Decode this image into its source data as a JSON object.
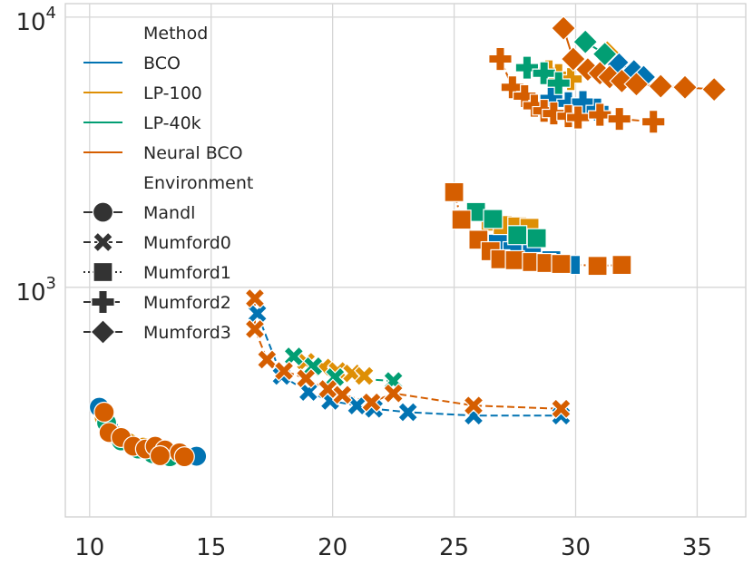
{
  "chart_data": {
    "type": "scatter",
    "title": "",
    "xlabel": "",
    "ylabel": "",
    "xlim": [
      9,
      37
    ],
    "ylim_log10": [
      2.15,
      4.05
    ],
    "y_scale": "log",
    "grid": true,
    "legend_position": "top-left",
    "x_ticks": [
      10,
      15,
      20,
      25,
      30,
      35
    ],
    "y_ticks": [
      {
        "value": 1000,
        "base": "10",
        "exp": "3"
      },
      {
        "value": 10000,
        "base": "10",
        "exp": "4"
      }
    ],
    "legend": {
      "method_title": "Method",
      "methods": [
        {
          "name": "BCO",
          "color": "#0173b2"
        },
        {
          "name": "LP-100",
          "color": "#de8f05"
        },
        {
          "name": "LP-40k",
          "color": "#029e73"
        },
        {
          "name": "Neural BCO",
          "color": "#d55e00"
        }
      ],
      "environment_title": "Environment",
      "environments": [
        {
          "name": "Mandl",
          "marker": "circle",
          "dash": "solid"
        },
        {
          "name": "Mumford0",
          "marker": "x",
          "dash": "dashed"
        },
        {
          "name": "Mumford1",
          "marker": "square",
          "dash": "dotted"
        },
        {
          "name": "Mumford2",
          "marker": "plus",
          "dash": "dashdot"
        },
        {
          "name": "Mumford3",
          "marker": "diamond",
          "dash": "solid"
        }
      ]
    },
    "series": [
      {
        "method": "BCO",
        "environment": "Mandl",
        "points": [
          [
            10.4,
            360
          ],
          [
            10.8,
            300
          ],
          [
            11.3,
            270
          ],
          [
            12.0,
            255
          ],
          [
            12.6,
            245
          ],
          [
            13.1,
            242
          ],
          [
            13.9,
            238
          ],
          [
            14.4,
            237
          ]
        ]
      },
      {
        "method": "LP-100",
        "environment": "Mandl",
        "points": [
          [
            10.6,
            330
          ],
          [
            11.1,
            282
          ],
          [
            11.6,
            266
          ],
          [
            12.2,
            256
          ],
          [
            12.7,
            250
          ],
          [
            13.2,
            246
          ]
        ]
      },
      {
        "method": "LP-40k",
        "environment": "Mandl",
        "points": [
          [
            10.7,
            315
          ],
          [
            11.3,
            270
          ],
          [
            12.0,
            252
          ],
          [
            12.6,
            242
          ],
          [
            13.3,
            236
          ]
        ]
      },
      {
        "method": "Neural BCO",
        "environment": "Mandl",
        "points": [
          [
            10.6,
            345
          ],
          [
            10.8,
            290
          ],
          [
            11.3,
            278
          ],
          [
            11.8,
            258
          ],
          [
            12.3,
            252
          ],
          [
            12.7,
            258
          ],
          [
            13.1,
            250
          ],
          [
            13.7,
            244
          ],
          [
            12.9,
            238
          ],
          [
            13.9,
            236
          ]
        ]
      },
      {
        "method": "BCO",
        "environment": "Mumford0",
        "points": [
          [
            16.9,
            800
          ],
          [
            17.9,
            470
          ],
          [
            19.0,
            410
          ],
          [
            19.9,
            380
          ],
          [
            21.0,
            365
          ],
          [
            21.7,
            355
          ],
          [
            23.1,
            345
          ],
          [
            25.8,
            335
          ],
          [
            29.4,
            335
          ]
        ]
      },
      {
        "method": "LP-100",
        "environment": "Mumford0",
        "points": [
          [
            18.9,
            530
          ],
          [
            19.6,
            505
          ],
          [
            20.2,
            490
          ],
          [
            20.8,
            480
          ],
          [
            21.3,
            470
          ]
        ]
      },
      {
        "method": "LP-40k",
        "environment": "Mumford0",
        "points": [
          [
            18.4,
            555
          ],
          [
            19.2,
            510
          ],
          [
            20.1,
            465
          ],
          [
            22.5,
            450
          ]
        ]
      },
      {
        "method": "Neural BCO",
        "environment": "Mumford0",
        "points": [
          [
            16.8,
            910
          ],
          [
            16.8,
            700
          ],
          [
            17.3,
            540
          ],
          [
            18.0,
            490
          ],
          [
            18.9,
            460
          ],
          [
            19.8,
            420
          ],
          [
            20.4,
            400
          ],
          [
            21.6,
            375
          ],
          [
            22.5,
            405
          ],
          [
            25.8,
            365
          ],
          [
            29.4,
            355
          ]
        ]
      },
      {
        "method": "BCO",
        "environment": "Mumford1",
        "points": [
          [
            26.8,
            1450
          ],
          [
            27.4,
            1360
          ],
          [
            28.2,
            1340
          ],
          [
            29.0,
            1260
          ],
          [
            29.8,
            1210
          ]
        ]
      },
      {
        "method": "LP-100",
        "environment": "Mumford1",
        "points": [
          [
            26.5,
            1750
          ],
          [
            27.0,
            1700
          ],
          [
            27.6,
            1680
          ],
          [
            28.1,
            1660
          ]
        ]
      },
      {
        "method": "LP-40k",
        "environment": "Mumford1",
        "points": [
          [
            25.9,
            1900
          ],
          [
            26.6,
            1790
          ],
          [
            27.6,
            1560
          ],
          [
            28.4,
            1520
          ]
        ]
      },
      {
        "method": "Neural BCO",
        "environment": "Mumford1",
        "points": [
          [
            25.0,
            2250
          ],
          [
            25.3,
            1780
          ],
          [
            26.0,
            1500
          ],
          [
            26.5,
            1360
          ],
          [
            26.9,
            1270
          ],
          [
            27.5,
            1260
          ],
          [
            28.2,
            1240
          ],
          [
            28.8,
            1230
          ],
          [
            29.4,
            1220
          ],
          [
            30.9,
            1200
          ],
          [
            31.9,
            1210
          ]
        ]
      },
      {
        "method": "BCO",
        "environment": "Mumford2",
        "points": [
          [
            29.0,
            5000
          ],
          [
            29.7,
            4800
          ],
          [
            30.3,
            4850
          ],
          [
            30.9,
            4550
          ]
        ]
      },
      {
        "method": "LP-100",
        "environment": "Mumford2",
        "points": [
          [
            28.9,
            6300
          ],
          [
            29.3,
            6100
          ],
          [
            29.8,
            5900
          ]
        ]
      },
      {
        "method": "LP-40k",
        "environment": "Mumford2",
        "points": [
          [
            28.0,
            6500
          ],
          [
            28.7,
            6200
          ],
          [
            29.3,
            5700
          ]
        ]
      },
      {
        "method": "Neural BCO",
        "environment": "Mumford2",
        "points": [
          [
            26.9,
            7000
          ],
          [
            27.4,
            5500
          ],
          [
            27.9,
            5100
          ],
          [
            28.3,
            4700
          ],
          [
            28.7,
            4500
          ],
          [
            29.1,
            4400
          ],
          [
            29.7,
            4300
          ],
          [
            30.1,
            4250
          ],
          [
            31.0,
            4350
          ],
          [
            31.8,
            4200
          ],
          [
            33.2,
            4100
          ]
        ]
      },
      {
        "method": "BCO",
        "environment": "Mumford3",
        "points": [
          [
            31.7,
            6800
          ],
          [
            32.4,
            6300
          ],
          [
            32.8,
            6000
          ]
        ]
      },
      {
        "method": "LP-100",
        "environment": "Mumford3",
        "points": [
          [
            31.3,
            7400
          ]
        ]
      },
      {
        "method": "LP-40k",
        "environment": "Mumford3",
        "points": [
          [
            30.4,
            8100
          ],
          [
            31.2,
            7300
          ]
        ]
      },
      {
        "method": "Neural BCO",
        "environment": "Mumford3",
        "points": [
          [
            29.5,
            9100
          ],
          [
            29.9,
            7000
          ],
          [
            30.5,
            6400
          ],
          [
            31.0,
            6200
          ],
          [
            31.4,
            6000
          ],
          [
            31.9,
            5800
          ],
          [
            32.5,
            5650
          ],
          [
            33.5,
            5550
          ],
          [
            34.5,
            5500
          ],
          [
            35.7,
            5400
          ]
        ]
      }
    ]
  }
}
